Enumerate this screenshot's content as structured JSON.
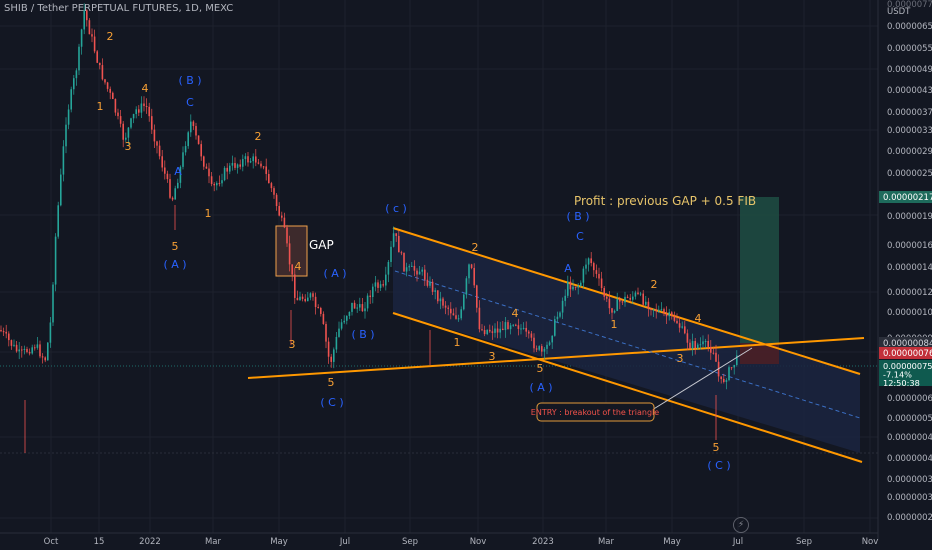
{
  "header": {
    "symbol_line": "SHIB / Tether PERPETUAL FUTURES, 1D, MEXC"
  },
  "price_scale": {
    "currency": "USDT",
    "top_clipped_label": "0.0000077000"
  },
  "colors": {
    "background": "#131722",
    "axis_text": "#b2b5be",
    "grid": "#1e222d",
    "candle_up": "#26a69a",
    "candle_down": "#ef5350",
    "wave_orange": "#f7a035",
    "wave_blue": "#2962ff",
    "channel": "#ff9800",
    "profit_zone": "#1e4d43",
    "loss_zone": "#4a1f26",
    "gap_box": "#f0a04b"
  },
  "chart_data": {
    "type": "candlestick",
    "title": "SHIB / Tether PERPETUAL FUTURES, 1D, MEXC",
    "y_scale": "log",
    "y_ticks": [
      "0.0000065000",
      "0.0000055000",
      "0.0000049000",
      "0.0000043000",
      "0.0000037000",
      "0.0000033000",
      "0.0000029000",
      "0.0000025000",
      "0.0000019000",
      "0.0000016000",
      "0.0000014000",
      "0.0000012000",
      "0.0000010500",
      "0.0000009000",
      "0.0000007600",
      "0.0000006200",
      "0.0000005400",
      "0.0000004800",
      "0.0000004200",
      "0.0000003700",
      "0.0000003300",
      "0.0000002900"
    ],
    "x_ticks": [
      "Oct",
      "15",
      "2022",
      "Mar",
      "May",
      "Jul",
      "Sep",
      "Nov",
      "2023",
      "Mar",
      "May",
      "Jul",
      "Sep",
      "Nov"
    ],
    "price_labels": [
      {
        "text": "0.0000021750",
        "kind": "target"
      },
      {
        "text": "0.0000008470",
        "kind": "ref"
      },
      {
        "text": "0.0000007650",
        "kind": "stop"
      },
      {
        "text": "0.0000007577",
        "kind": "last"
      },
      {
        "text": "-7.14%",
        "kind": "last"
      },
      {
        "text": "12:50:38",
        "kind": "last"
      }
    ],
    "annotations": {
      "profit": "Profit :  previous GAP + 0.5 FIB",
      "gap": "GAP",
      "entry": "ENTRY : breakout of the triangle"
    },
    "wave_labels": [
      {
        "t": "2",
        "c": "o"
      },
      {
        "t": "1",
        "c": "o"
      },
      {
        "t": "3",
        "c": "o"
      },
      {
        "t": "4",
        "c": "o"
      },
      {
        "t": "( B )",
        "c": "b"
      },
      {
        "t": "C",
        "c": "b"
      },
      {
        "t": "A",
        "c": "b"
      },
      {
        "t": "1",
        "c": "o"
      },
      {
        "t": "5",
        "c": "o"
      },
      {
        "t": "( A )",
        "c": "b"
      },
      {
        "t": "2",
        "c": "o"
      },
      {
        "t": "4",
        "c": "o"
      },
      {
        "t": "3",
        "c": "o"
      },
      {
        "t": "( A )",
        "c": "b"
      },
      {
        "t": "( B )",
        "c": "b"
      },
      {
        "t": "5",
        "c": "o"
      },
      {
        "t": "( C )",
        "c": "b"
      },
      {
        "t": "( c )",
        "c": "b"
      },
      {
        "t": "2",
        "c": "o"
      },
      {
        "t": "1",
        "c": "o"
      },
      {
        "t": "3",
        "c": "o"
      },
      {
        "t": "4",
        "c": "o"
      },
      {
        "t": "5",
        "c": "o"
      },
      {
        "t": "( A )",
        "c": "b"
      },
      {
        "t": "( B )",
        "c": "b"
      },
      {
        "t": "C",
        "c": "b"
      },
      {
        "t": "A",
        "c": "b"
      },
      {
        "t": "2",
        "c": "o"
      },
      {
        "t": "1",
        "c": "o"
      },
      {
        "t": "4",
        "c": "o"
      },
      {
        "t": "3",
        "c": "o"
      },
      {
        "t": "5",
        "c": "o"
      },
      {
        "t": "( C )",
        "c": "b"
      }
    ]
  }
}
